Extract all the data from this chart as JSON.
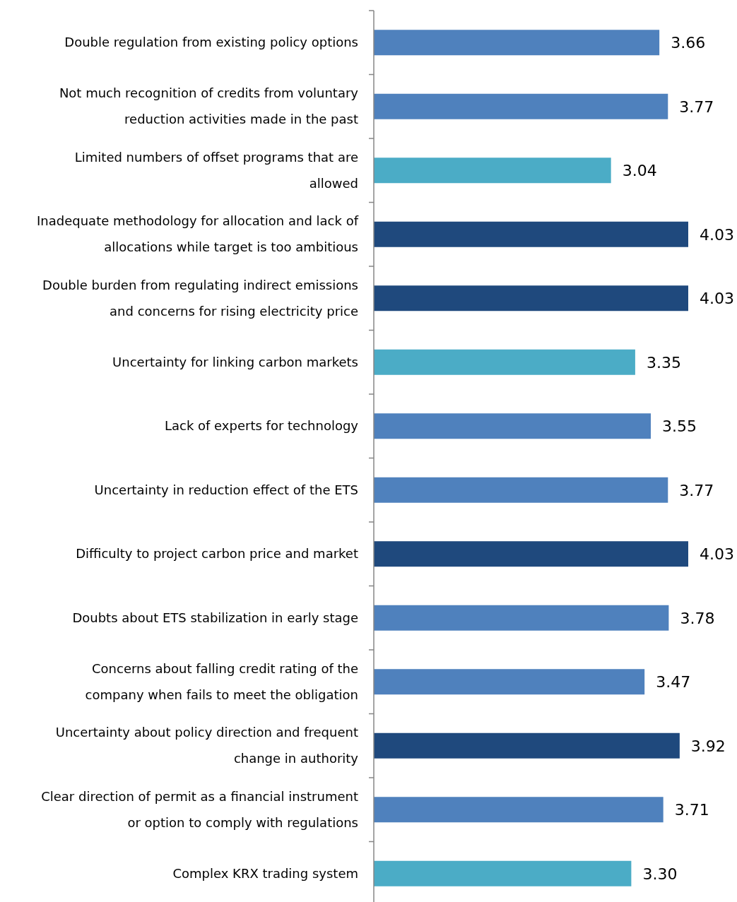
{
  "chart_data": {
    "type": "bar",
    "orientation": "horizontal",
    "categories": [
      "Double regulation from existing policy options",
      "Not much recognition of credits from voluntary\nreduction activities made in the past",
      "Limited numbers of offset programs that are\nallowed",
      "Inadequate methodology for allocation and lack of\nallocations while target is too ambitious",
      "Double burden from regulating indirect emissions\nand concerns for rising electricity price",
      "Uncertainty for linking carbon markets",
      "Lack of experts for technology",
      "Uncertainty in reduction effect of the ETS",
      "Difficulty to project carbon price and market",
      "Doubts about ETS stabilization in early stage",
      "Concerns about falling credit rating of the\ncompany when fails to meet the obligation",
      "Uncertainty about policy direction and frequent\nchange in authority",
      "Clear direction of permit as a financial instrument\nor option to comply with regulations",
      "Complex KRX trading system"
    ],
    "values": [
      3.66,
      3.77,
      3.04,
      4.03,
      4.03,
      3.35,
      3.55,
      3.77,
      4.03,
      3.78,
      3.47,
      3.92,
      3.71,
      3.3
    ],
    "value_labels": [
      "3.66",
      "3.77",
      "3.04",
      "4.03",
      "4.03",
      "3.35",
      "3.55",
      "3.77",
      "4.03",
      "3.78",
      "3.47",
      "3.92",
      "3.71",
      "3.30"
    ],
    "colors": [
      "#4f81bd",
      "#4f81bd",
      "#4bacc6",
      "#1f497d",
      "#1f497d",
      "#4bacc6",
      "#4f81bd",
      "#4f81bd",
      "#1f497d",
      "#4f81bd",
      "#4f81bd",
      "#1f497d",
      "#4f81bd",
      "#4bacc6"
    ]
  }
}
